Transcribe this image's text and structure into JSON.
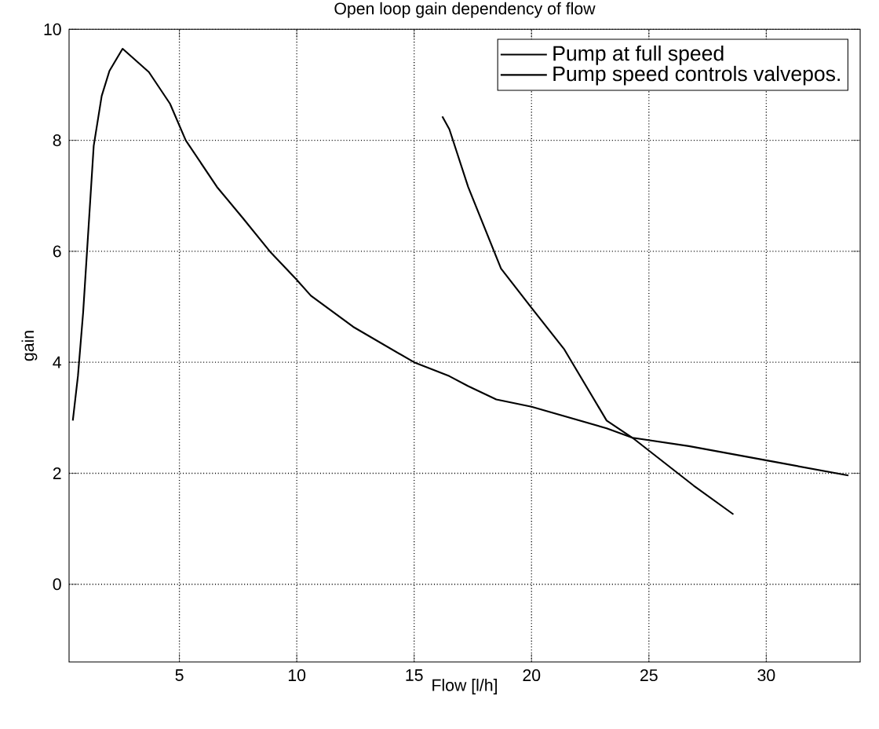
{
  "chart_data": {
    "type": "line",
    "title": "Open loop gain dependency of flow",
    "xlabel": "Flow [l/h]",
    "ylabel": "gain",
    "xlim": [
      0.3,
      34
    ],
    "ylim": [
      -1.4,
      10
    ],
    "xticks": [
      5,
      10,
      15,
      20,
      25,
      30
    ],
    "yticks": [
      0,
      2,
      4,
      6,
      8,
      10
    ],
    "grid": true,
    "legend": "top right",
    "line_style": "solid",
    "series": [
      {
        "name": "Pump at full speed",
        "color": "#000000",
        "x": [
          0.46,
          0.68,
          0.9,
          1.35,
          1.69,
          2.02,
          2.58,
          3.7,
          4.6,
          5.27,
          6.6,
          7.7,
          8.85,
          9.97,
          10.6,
          12.4,
          15.0,
          16.5,
          17.3,
          18.5,
          20.0,
          23.2,
          24.3,
          26.7,
          30.3,
          33.5
        ],
        "values": [
          2.95,
          3.76,
          4.9,
          7.9,
          8.8,
          9.25,
          9.65,
          9.23,
          8.66,
          8.0,
          7.16,
          6.6,
          6.0,
          5.5,
          5.2,
          4.64,
          4.0,
          3.75,
          3.57,
          3.33,
          3.2,
          2.81,
          2.64,
          2.49,
          2.21,
          1.96
        ]
      },
      {
        "name": "Pump speed controls valvepos.",
        "color": "#000000",
        "x": [
          16.2,
          16.5,
          17.3,
          18.7,
          20.0,
          21.4,
          23.2,
          24.3,
          26.9,
          28.6
        ],
        "values": [
          8.43,
          8.2,
          7.16,
          5.69,
          4.98,
          4.23,
          2.95,
          2.64,
          1.78,
          1.26
        ]
      }
    ]
  }
}
